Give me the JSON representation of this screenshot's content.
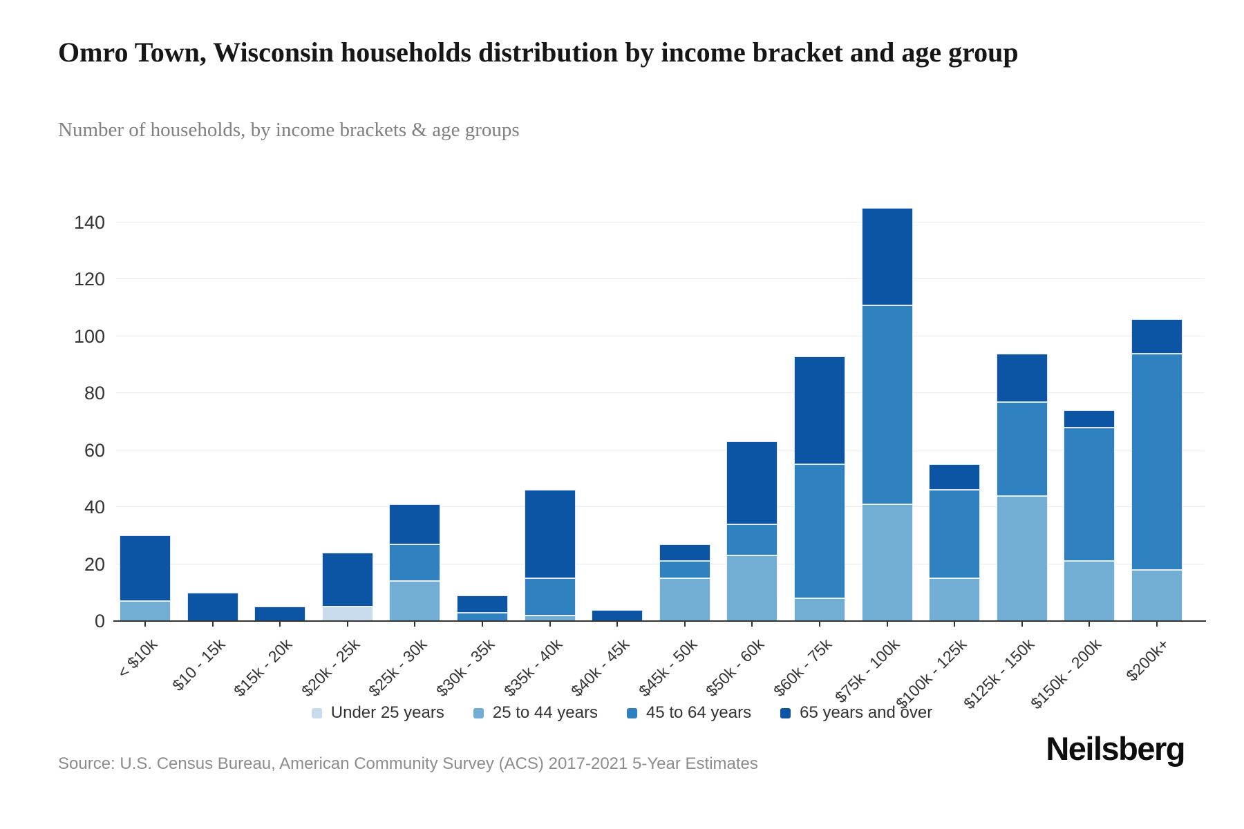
{
  "header": {
    "title": "Omro Town, Wisconsin households distribution by income bracket and age group",
    "subtitle": "Number of households, by income brackets & age groups"
  },
  "footer": {
    "source": "Source: U.S. Census Bureau, American Community Survey (ACS) 2017-2021 5-Year Estimates",
    "brand": "Neilsberg"
  },
  "chart_data": {
    "type": "bar",
    "stacked": true,
    "title": "Omro Town, Wisconsin households distribution by income bracket and age group",
    "subtitle": "Number of households, by income brackets & age groups",
    "xlabel": "",
    "ylabel": "",
    "ylim": [
      0,
      140
    ],
    "yticks": [
      0,
      20,
      40,
      60,
      80,
      100,
      120,
      140
    ],
    "grid": true,
    "legend_position": "bottom",
    "categories": [
      "< $10k",
      "$10 - 15k",
      "$15k - 20k",
      "$20k - 25k",
      "$25k - 30k",
      "$30k - 35k",
      "$35k - 40k",
      "$40k - 45k",
      "$45k - 50k",
      "$50k - 60k",
      "$60k - 75k",
      "$75k - 100k",
      "$100k - 125k",
      "$125k - 150k",
      "$150k - 200k",
      "$200k+"
    ],
    "series": [
      {
        "name": "Under 25 years",
        "color": "#c8dcee",
        "values": [
          0,
          0,
          0,
          5,
          0,
          0,
          0,
          0,
          0,
          0,
          0,
          0,
          0,
          0,
          0,
          0
        ]
      },
      {
        "name": "25 to 44 years",
        "color": "#72add4",
        "values": [
          7,
          0,
          0,
          0,
          14,
          0,
          2,
          0,
          15,
          23,
          8,
          41,
          15,
          44,
          21,
          18
        ]
      },
      {
        "name": "45 to 64 years",
        "color": "#2f81c0",
        "values": [
          0,
          0,
          0,
          0,
          13,
          3,
          13,
          0,
          6,
          11,
          47,
          70,
          31,
          33,
          47,
          76
        ]
      },
      {
        "name": "65 years and over",
        "color": "#0b55a4",
        "values": [
          23,
          10,
          5,
          19,
          14,
          6,
          31,
          4,
          6,
          29,
          38,
          34,
          9,
          17,
          6,
          12
        ]
      }
    ],
    "totals": [
      30,
      10,
      5,
      24,
      41,
      9,
      46,
      4,
      27,
      63,
      93,
      145,
      55,
      94,
      74,
      106
    ],
    "axis_color": "#333333",
    "gridline_color": "#ebebeb"
  }
}
